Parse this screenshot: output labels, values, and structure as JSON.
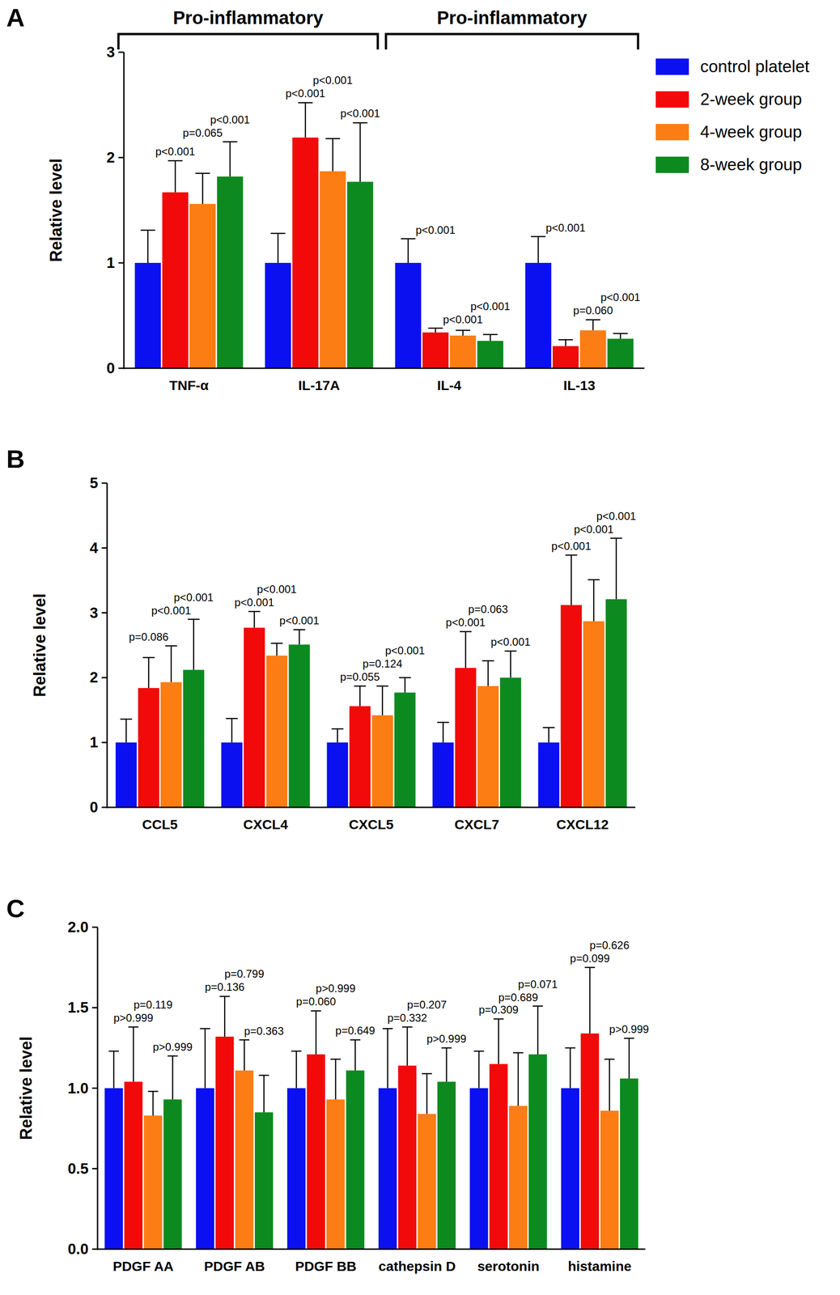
{
  "chart_data": [
    {
      "type": "bar",
      "panel": "A",
      "y_label": "Relative level",
      "categories": [
        "TNF-α",
        "IL-17A",
        "IL-4",
        "IL-13"
      ],
      "ylim": [
        0,
        3
      ],
      "yticks": [
        0,
        1,
        2,
        3
      ],
      "legend": "top-right",
      "brackets": [
        {
          "label": "Pro-inflammatory",
          "from": "TNF-α",
          "to": "IL-17A"
        },
        {
          "label": "Pro-inflammatory",
          "from": "IL-4",
          "to": "IL-13"
        }
      ],
      "series": [
        {
          "name": "control platelet",
          "color": "#0a10f0",
          "values": [
            1,
            1,
            1,
            1
          ],
          "errors": [
            0.31,
            0.28,
            0.23,
            0.25
          ]
        },
        {
          "name": "2-week group",
          "color": "#f20a0a",
          "values": [
            1.67,
            2.19,
            0.34,
            0.21
          ],
          "errors": [
            0.3,
            0.33,
            0.04,
            0.06
          ],
          "p_labels": [
            "p<0.001",
            "p<0.001",
            "p<0.001",
            "p<0.001"
          ]
        },
        {
          "name": "4-week group",
          "color": "#fb7d14",
          "values": [
            1.56,
            1.87,
            0.31,
            0.36
          ],
          "errors": [
            0.29,
            0.31,
            0.05,
            0.1
          ],
          "p_labels": [
            "p=0.065",
            "p<0.001",
            "p<0.001",
            "p=0.060"
          ]
        },
        {
          "name": "8-week group",
          "color": "#0d8a1f",
          "values": [
            1.82,
            1.77,
            0.26,
            0.28
          ],
          "errors": [
            0.33,
            0.56,
            0.06,
            0.05
          ],
          "p_labels": [
            "p<0.001",
            "p<0.001",
            "p<0.001",
            "p<0.001"
          ]
        }
      ]
    },
    {
      "type": "bar",
      "panel": "B",
      "y_label": "Relative level",
      "categories": [
        "CCL5",
        "CXCL4",
        "CXCL5",
        "CXCL7",
        "CXCL12"
      ],
      "ylim": [
        0,
        5
      ],
      "yticks": [
        0,
        1,
        2,
        3,
        4,
        5
      ],
      "series": [
        {
          "color": "#0a10f0",
          "values": [
            1,
            1,
            1,
            1,
            1
          ],
          "errors": [
            0.36,
            0.37,
            0.21,
            0.31,
            0.23
          ]
        },
        {
          "color": "#f20a0a",
          "values": [
            1.84,
            2.77,
            1.56,
            2.15,
            3.12
          ],
          "errors": [
            0.47,
            0.25,
            0.31,
            0.56,
            0.77
          ],
          "p_labels": [
            "p=0.086",
            "p<0.001",
            "p=0.055",
            "p<0.001",
            "p<0.001"
          ]
        },
        {
          "color": "#fb7d14",
          "values": [
            1.93,
            2.34,
            1.42,
            1.87,
            2.87
          ],
          "errors": [
            0.56,
            0.19,
            0.45,
            0.39,
            0.64
          ],
          "p_labels": [
            "p<0.001",
            "p<0.001",
            "p=0.124",
            "p=0.063",
            "p<0.001"
          ]
        },
        {
          "color": "#0d8a1f",
          "values": [
            2.12,
            2.51,
            1.77,
            2.0,
            3.21
          ],
          "errors": [
            0.78,
            0.23,
            0.23,
            0.41,
            0.94
          ],
          "p_labels": [
            "p<0.001",
            "p<0.001",
            "p<0.001",
            "p<0.001",
            "p<0.001"
          ]
        }
      ]
    },
    {
      "type": "bar",
      "panel": "C",
      "y_label": "Relative level",
      "categories": [
        "PDGF AA",
        "PDGF AB",
        "PDGF BB",
        "cathepsin D",
        "serotonin",
        "histamine"
      ],
      "ylim": [
        0,
        2
      ],
      "yticks": [
        {
          "value": 0,
          "label": "0.0"
        },
        {
          "value": 0.5,
          "label": "0.5"
        },
        {
          "value": 1,
          "label": "1.0"
        },
        {
          "value": 1.5,
          "label": "1.5"
        },
        {
          "value": 2,
          "label": "2.0"
        }
      ],
      "series": [
        {
          "color": "#0a10f0",
          "values": [
            1,
            1,
            1,
            1,
            1,
            1
          ],
          "errors": [
            0.23,
            0.37,
            0.23,
            0.37,
            0.23,
            0.25
          ]
        },
        {
          "color": "#f20a0a",
          "values": [
            1.04,
            1.32,
            1.21,
            1.14,
            1.15,
            1.34
          ],
          "errors": [
            0.34,
            0.25,
            0.27,
            0.24,
            0.28,
            0.41
          ],
          "p_labels": [
            "p>0.999",
            "p=0.136",
            "p=0.060",
            "p=0.332",
            "p=0.309",
            "p=0.099"
          ]
        },
        {
          "color": "#fb7d14",
          "values": [
            0.83,
            1.11,
            0.93,
            0.84,
            0.89,
            0.86
          ],
          "errors": [
            0.15,
            0.19,
            0.25,
            0.25,
            0.33,
            0.32
          ],
          "p_labels": [
            "p=0.119",
            "p=0.799",
            "p>0.999",
            "p=0.207",
            "p=0.689",
            "p=0.626"
          ]
        },
        {
          "color": "#0d8a1f",
          "values": [
            0.93,
            0.85,
            1.11,
            1.04,
            1.21,
            1.06
          ],
          "errors": [
            0.27,
            0.23,
            0.19,
            0.21,
            0.3,
            0.25
          ],
          "p_labels": [
            "p>0.999",
            "p=0.363",
            "p=0.649",
            "p>0.999",
            "p=0.071",
            "p>0.999"
          ]
        }
      ]
    }
  ]
}
